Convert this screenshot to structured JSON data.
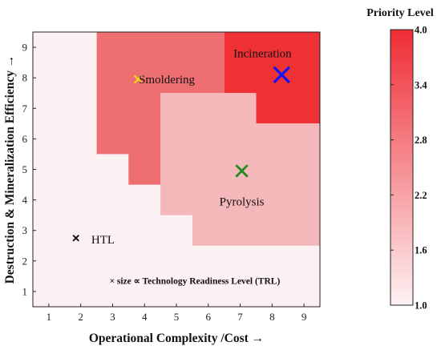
{
  "chart_data": {
    "type": "heatmap",
    "title": "",
    "xlabel": "Operational Complexity /Cost →",
    "ylabel": "Destruction & Mineralization Efficiency →",
    "xlim": [
      0.5,
      9.5
    ],
    "ylim": [
      0.5,
      9.5
    ],
    "xticks": [
      1,
      2,
      3,
      4,
      5,
      6,
      7,
      8,
      9
    ],
    "yticks": [
      1,
      2,
      3,
      4,
      5,
      6,
      7,
      8,
      9
    ],
    "grid": false,
    "colorbar": {
      "label": "Priority Level",
      "min": 1.0,
      "max": 4.0,
      "ticks": [
        "1.0",
        "1.6",
        "2.2",
        "2.8",
        "3.4",
        "4.0"
      ],
      "color_low": "#fdf2f3",
      "color_high": "#ef2c34"
    },
    "regions": [
      {
        "name": "Incineration",
        "priority": 4.0,
        "color": "#ef3034",
        "polygon": [
          [
            6.5,
            9.5
          ],
          [
            9.5,
            9.5
          ],
          [
            9.5,
            6.5
          ],
          [
            8.5,
            6.5
          ],
          [
            7.5,
            6.5
          ],
          [
            7.5,
            7.5
          ],
          [
            6.5,
            7.5
          ]
        ]
      },
      {
        "name": "Smoldering",
        "priority": 3.0,
        "color": "#ee6f72",
        "polygon": [
          [
            2.5,
            9.5
          ],
          [
            6.5,
            9.5
          ],
          [
            6.5,
            7.5
          ],
          [
            4.5,
            7.5
          ],
          [
            4.5,
            4.5
          ],
          [
            3.5,
            4.5
          ],
          [
            3.5,
            5.5
          ],
          [
            2.5,
            5.5
          ]
        ]
      },
      {
        "name": "Pyrolysis",
        "priority": 2.0,
        "color": "#f5b8ba",
        "polygon": [
          [
            4.5,
            7.5
          ],
          [
            7.5,
            7.5
          ],
          [
            7.5,
            6.5
          ],
          [
            9.5,
            6.5
          ],
          [
            9.5,
            2.5
          ],
          [
            5.5,
            2.5
          ],
          [
            5.5,
            3.5
          ],
          [
            4.5,
            3.5
          ]
        ]
      }
    ],
    "background_priority": 1.0,
    "background_color": "#fdf2f3",
    "points": [
      {
        "label": "Incineration",
        "x": 8.3,
        "y": 8.1,
        "trl_marker": 4,
        "color": "#1515ee"
      },
      {
        "label": "Smoldering",
        "x": 3.8,
        "y": 7.95,
        "trl_marker": 2,
        "color": "#ffd21e"
      },
      {
        "label": "Pyrolysis",
        "x": 7.05,
        "y": 4.95,
        "trl_marker": 3,
        "color": "#1f8a1f"
      },
      {
        "label": "HTL",
        "x": 1.85,
        "y": 2.75,
        "trl_marker": 1.5,
        "color": "#111111"
      }
    ],
    "annotations": [
      {
        "text": "Incineration",
        "x": 7.7,
        "y": 8.8
      },
      {
        "text": "Smoldering",
        "x": 4.7,
        "y": 7.95
      },
      {
        "text": "Pyrolysis",
        "x": 7.05,
        "y": 3.95
      },
      {
        "text": "HTL",
        "x": 2.7,
        "y": 2.7
      }
    ],
    "legend_note": "× size ∝ Technology Readiness Level (TRL)"
  }
}
